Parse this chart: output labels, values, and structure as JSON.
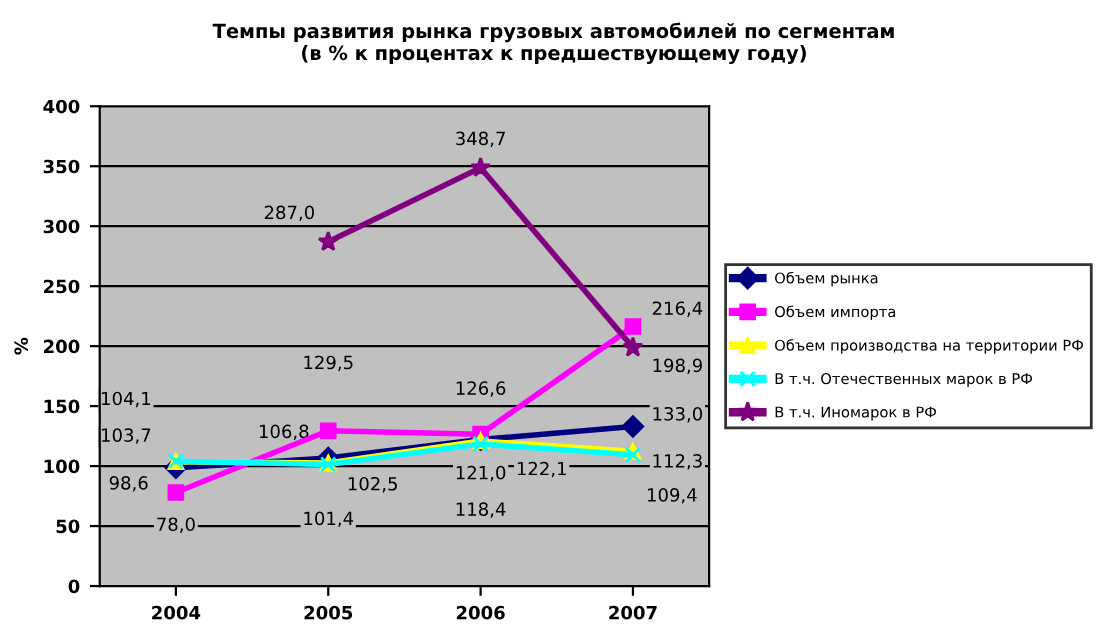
{
  "chart_data": {
    "type": "line",
    "title": "Темпы развития рынка грузовых автомобилей по сегментам\n(в % к процентах к предшествующему году)",
    "ylabel": "%",
    "categories": [
      "2004",
      "2005",
      "2006",
      "2007"
    ],
    "ylim": [
      0,
      400
    ],
    "yticks": [
      0,
      50,
      100,
      150,
      200,
      250,
      300,
      350,
      400
    ],
    "grid": "y",
    "legend": "right",
    "series": [
      {
        "name": "Объем рынка",
        "color": "#000080",
        "marker": "diamond",
        "values": [
          98.6,
          106.8,
          122.1,
          133.0
        ],
        "value_labels": [
          "98,6",
          "106,8",
          "122,1",
          "133,0"
        ]
      },
      {
        "name": "Объем импорта",
        "color": "#ff00ff",
        "marker": "square",
        "values": [
          78.0,
          129.5,
          126.6,
          216.4
        ],
        "value_labels": [
          "78,0",
          "129,5",
          "126,6",
          "216,4"
        ]
      },
      {
        "name": "Объем производства на территории РФ",
        "color": "#ffff00",
        "marker": "triangle",
        "values": [
          103.7,
          102.5,
          121.0,
          112.3
        ],
        "value_labels": [
          "103,7",
          "102,5",
          "121,0",
          "112,3"
        ]
      },
      {
        "name": "В т.ч. Отечественных марок в РФ",
        "color": "#00ffff",
        "marker": "cross",
        "values": [
          104.1,
          101.4,
          118.4,
          109.4
        ],
        "value_labels": [
          "104,1",
          "101,4",
          "118,4",
          "109,4"
        ]
      },
      {
        "name": "В т.ч. Иномарок в РФ",
        "color": "#800080",
        "marker": "star",
        "values": [
          null,
          287.0,
          348.7,
          198.9
        ],
        "value_labels": [
          null,
          "287,0",
          "348,7",
          "198,9"
        ]
      }
    ]
  }
}
